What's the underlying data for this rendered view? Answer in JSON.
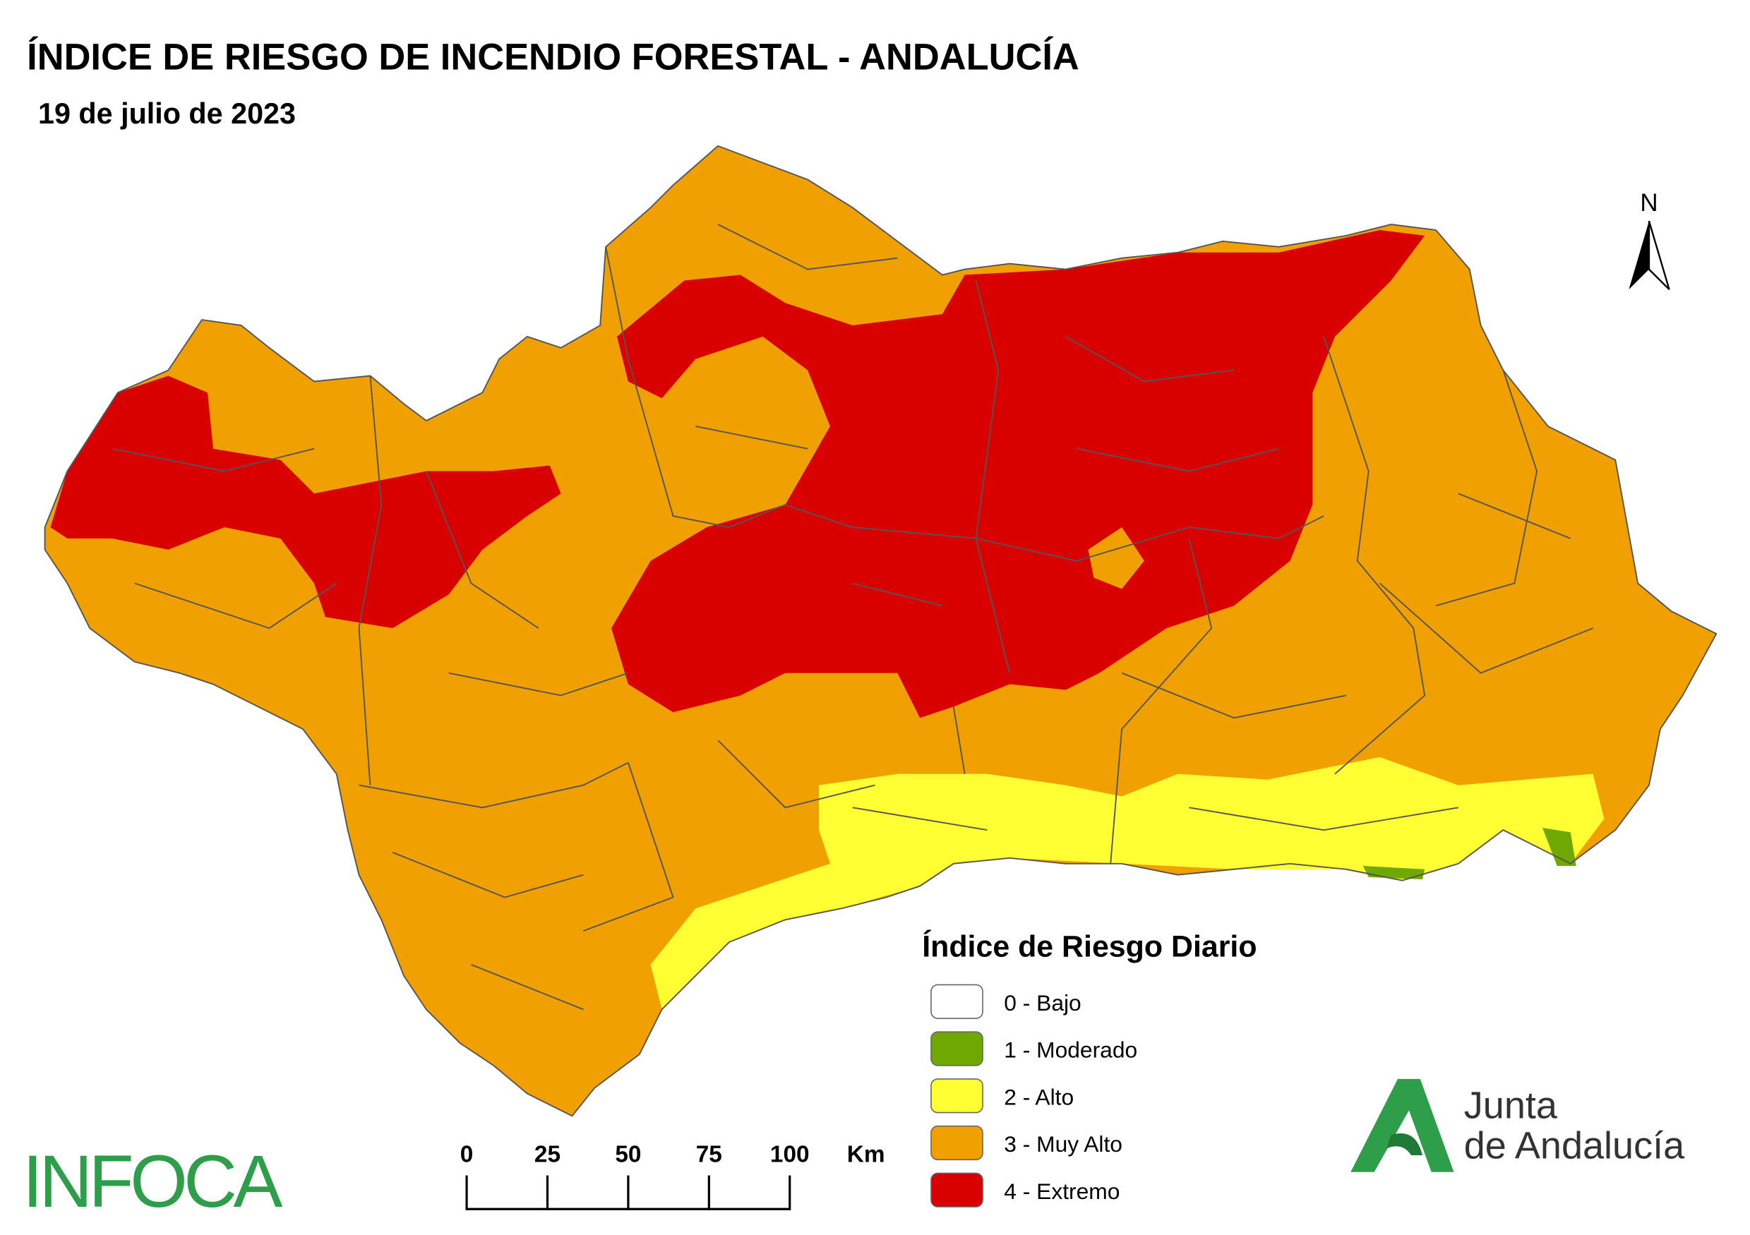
{
  "header": {
    "title": "ÍNDICE DE RIESGO DE INCENDIO FORESTAL - ANDALUCÍA",
    "date": "19 de julio de 2023"
  },
  "legend": {
    "title": "Índice de Riesgo Diario",
    "items": [
      {
        "label": "0 - Bajo",
        "color": "#ffffff"
      },
      {
        "label": "1 - Moderado",
        "color": "#6ea800"
      },
      {
        "label": "2 - Alto",
        "color": "#ffff33"
      },
      {
        "label": "3 - Muy Alto",
        "color": "#f0a000"
      },
      {
        "label": "4 - Extremo",
        "color": "#d90000"
      }
    ]
  },
  "scale_bar": {
    "ticks": [
      0,
      25,
      50,
      75,
      100
    ],
    "unit": "Km"
  },
  "north_arrow": "N",
  "logos": {
    "infoca": "INFOCA",
    "junta": [
      "Junta",
      "de Andalucía"
    ]
  }
}
